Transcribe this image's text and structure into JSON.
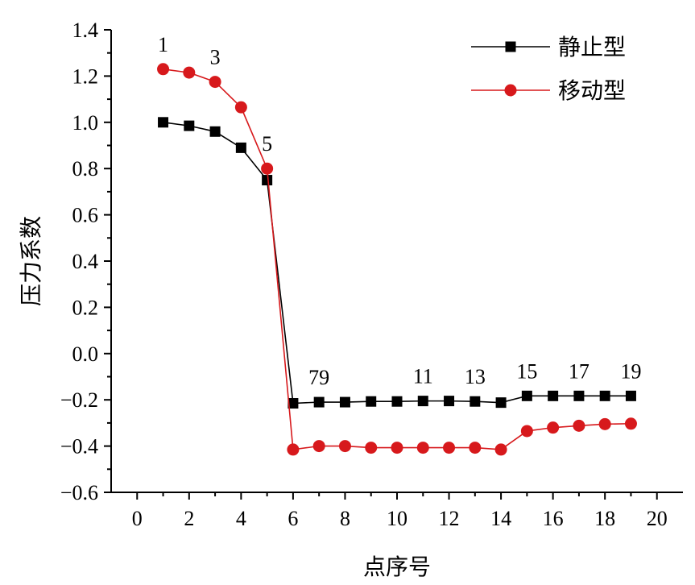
{
  "chart_data": {
    "type": "line",
    "title": "",
    "xlabel": "点序号",
    "ylabel": "压力系数",
    "xlim": [
      -1,
      21
    ],
    "ylim": [
      -0.6,
      1.4
    ],
    "x_ticks": [
      0,
      2,
      4,
      6,
      8,
      10,
      12,
      14,
      16,
      18,
      20
    ],
    "x_tick_labels": [
      "0",
      "2",
      "4",
      "6",
      "8",
      "10",
      "12",
      "14",
      "16",
      "18",
      "20"
    ],
    "y_ticks": [
      -0.6,
      -0.4,
      -0.2,
      0.0,
      0.2,
      0.4,
      0.6,
      0.8,
      1.0,
      1.2,
      1.4
    ],
    "y_tick_labels": [
      "−0.6",
      "−0.4",
      "−0.2",
      "0.0",
      "0.2",
      "0.4",
      "0.6",
      "0.8",
      "1.0",
      "1.2",
      "1.4"
    ],
    "grid": false,
    "legend_position": "top-right",
    "x": [
      1,
      2,
      3,
      4,
      5,
      6,
      7,
      8,
      9,
      10,
      11,
      12,
      13,
      14,
      15,
      16,
      17,
      18,
      19
    ],
    "series": [
      {
        "name": "静止型",
        "color": "#000000",
        "marker": "square",
        "values": [
          1.0,
          0.985,
          0.96,
          0.89,
          0.75,
          -0.215,
          -0.21,
          -0.21,
          -0.207,
          -0.207,
          -0.205,
          -0.205,
          -0.207,
          -0.212,
          -0.183,
          -0.183,
          -0.183,
          -0.183,
          -0.183
        ]
      },
      {
        "name": "移动型",
        "color": "#d7191c",
        "marker": "circle",
        "values": [
          1.23,
          1.215,
          1.175,
          1.065,
          0.8,
          -0.415,
          -0.4,
          -0.4,
          -0.407,
          -0.407,
          -0.407,
          -0.407,
          -0.407,
          -0.415,
          -0.335,
          -0.32,
          -0.312,
          -0.305,
          -0.303
        ]
      }
    ],
    "annotations": [
      {
        "text": "1",
        "x": 1,
        "y": 1.23
      },
      {
        "text": "3",
        "x": 3,
        "y": 1.175
      },
      {
        "text": "5",
        "x": 5,
        "y": 0.8
      },
      {
        "text": "79",
        "x": 7,
        "y": -0.21
      },
      {
        "text": "11",
        "x": 11,
        "y": -0.205
      },
      {
        "text": "13",
        "x": 13,
        "y": -0.207
      },
      {
        "text": "15",
        "x": 15,
        "y": -0.183
      },
      {
        "text": "17",
        "x": 17,
        "y": -0.183
      },
      {
        "text": "19",
        "x": 19,
        "y": -0.183
      }
    ]
  }
}
